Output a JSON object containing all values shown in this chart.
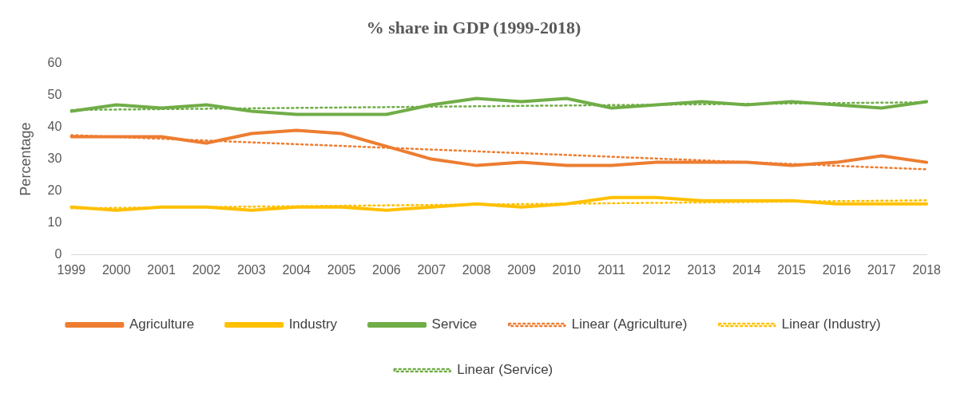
{
  "chart_data": {
    "type": "line",
    "title": "% share in GDP (1999-2018)",
    "ylabel": "Percentage",
    "categories": [
      "1999",
      "2000",
      "2001",
      "2002",
      "2003",
      "2004",
      "2005",
      "2006",
      "2007",
      "2008",
      "2009",
      "2010",
      "2011",
      "2012",
      "2013",
      "2014",
      "2015",
      "2016",
      "2017",
      "2018"
    ],
    "ylim": [
      0,
      60
    ],
    "yticks": [
      0,
      10,
      20,
      30,
      40,
      50,
      60
    ],
    "grid": false,
    "legend": "bottom",
    "line_style": "solid",
    "marker": "none",
    "series": [
      {
        "name": "Agriculture",
        "color": "#ed7d31",
        "values": [
          37,
          37,
          37,
          35,
          38,
          39,
          38,
          34,
          30,
          28,
          29,
          28,
          28,
          29,
          29,
          29,
          28,
          29,
          31,
          29
        ]
      },
      {
        "name": "Industry",
        "color": "#ffc000",
        "values": [
          15,
          14,
          15,
          15,
          14,
          15,
          15,
          14,
          15,
          16,
          15,
          16,
          18,
          18,
          17,
          17,
          17,
          16,
          16,
          16
        ]
      },
      {
        "name": "Service",
        "color": "#70ad47",
        "values": [
          45,
          47,
          46,
          47,
          45,
          44,
          44,
          44,
          47,
          49,
          48,
          49,
          46,
          47,
          48,
          47,
          48,
          47,
          46,
          48
        ]
      },
      {
        "name": "Linear (Agriculture)",
        "color": "#ed7d31",
        "line_style": "dotted",
        "values": [
          37.5,
          null,
          null,
          null,
          null,
          null,
          null,
          null,
          null,
          null,
          null,
          null,
          null,
          null,
          null,
          null,
          null,
          null,
          null,
          26.8
        ]
      },
      {
        "name": "Linear (Industry)",
        "color": "#ffc000",
        "line_style": "dotted",
        "values": [
          14.6,
          null,
          null,
          null,
          null,
          null,
          null,
          null,
          null,
          null,
          null,
          null,
          null,
          null,
          null,
          null,
          null,
          null,
          null,
          17.1
        ]
      },
      {
        "name": "Linear (Service)",
        "color": "#70ad47",
        "line_style": "dotted",
        "values": [
          45.4,
          null,
          null,
          null,
          null,
          null,
          null,
          null,
          null,
          null,
          null,
          null,
          null,
          null,
          null,
          null,
          null,
          null,
          null,
          47.8
        ]
      }
    ]
  }
}
